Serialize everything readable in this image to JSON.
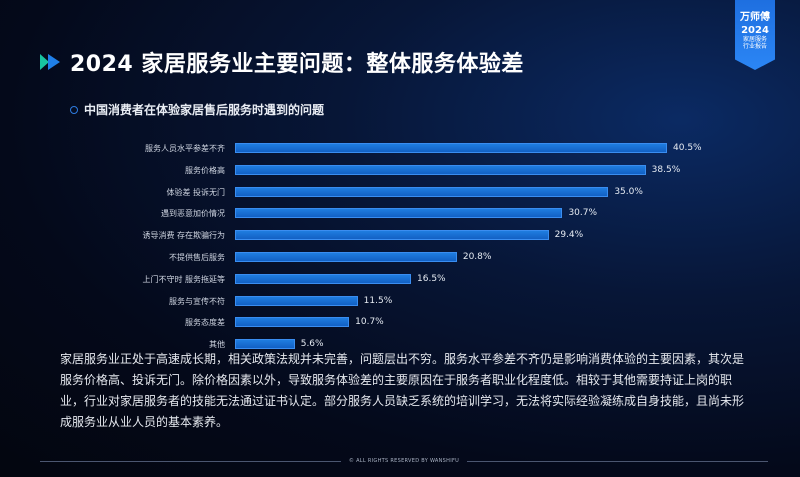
{
  "header": {
    "title": "2024 家居服务业主要问题：整体服务体验差",
    "subtitle": "中国消费者在体验家居售后服务时遇到的问题"
  },
  "badge": {
    "brand": "万师傅",
    "year": "2024",
    "line1": "家居服务",
    "line2": "行业报告"
  },
  "chart_data": {
    "type": "bar",
    "orientation": "horizontal",
    "title": "中国消费者在体验家居售后服务时遇到的问题",
    "categories": [
      "服务人员水平参差不齐",
      "服务价格高",
      "体验差 投诉无门",
      "遇到恶意加价情况",
      "诱导消费 存在欺骗行为",
      "不提供售后服务",
      "上门不守时 服务拖延等",
      "服务与宣传不符",
      "服务态度差",
      "其他"
    ],
    "values": [
      40.5,
      38.5,
      35.0,
      30.7,
      29.4,
      20.8,
      16.5,
      11.5,
      10.7,
      5.6
    ],
    "value_labels": [
      "40.5%",
      "38.5%",
      "35.0%",
      "30.7%",
      "29.4%",
      "20.8%",
      "16.5%",
      "11.5%",
      "10.7%",
      "5.6%"
    ],
    "unit": "%",
    "grid": false,
    "legend": false,
    "bar_color": "#1a73d9"
  },
  "body_text": "家居服务业正处于高速成长期，相关政策法规并未完善，问题层出不穷。服务水平参差不齐仍是影响消费体验的主要因素，其次是服务价格高、投诉无门。除价格因素以外，导致服务体验差的主要原因在于服务者职业化程度低。相较于其他需要持证上岗的职业，行业对家居服务者的技能无法通过证书认定。部分服务人员缺乏系统的培训学习，无法将实际经验凝练成自身技能，且尚未形成服务业从业人员的基本素养。",
  "footer": {
    "text": "© ALL RIGHTS RESERVED BY WANSHIFU"
  }
}
